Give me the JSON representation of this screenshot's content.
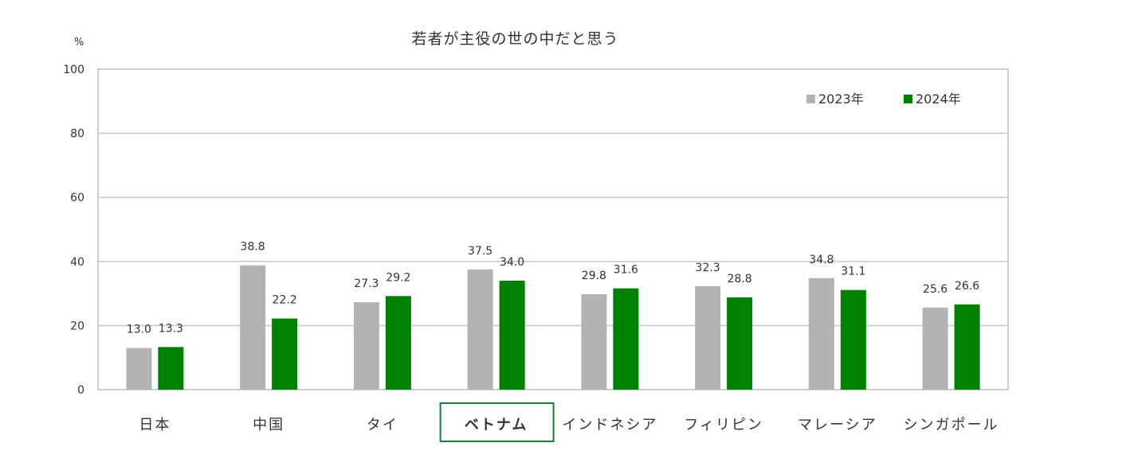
{
  "chart_data": {
    "type": "bar",
    "title": "若者が主役の世の中だと思う",
    "unit": "%",
    "categories": [
      "日本",
      "中国",
      "タイ",
      "ベトナム",
      "インドネシア",
      "フィリピン",
      "マレーシア",
      "シンガポール"
    ],
    "highlighted_category": "ベトナム",
    "series": [
      {
        "name": "2023年",
        "color": "#b3b3b3",
        "values": [
          13.0,
          38.8,
          27.3,
          37.5,
          29.8,
          32.3,
          34.8,
          25.6
        ]
      },
      {
        "name": "2024年",
        "color": "#008000",
        "values": [
          13.3,
          22.2,
          29.2,
          34.0,
          31.6,
          28.8,
          31.1,
          26.6
        ]
      }
    ],
    "ylim": [
      0,
      100
    ],
    "yticks": [
      0,
      20,
      40,
      60,
      80,
      100
    ],
    "grid": true,
    "legend_position": "top-right",
    "highlight_border_color": "#1e7b34"
  }
}
